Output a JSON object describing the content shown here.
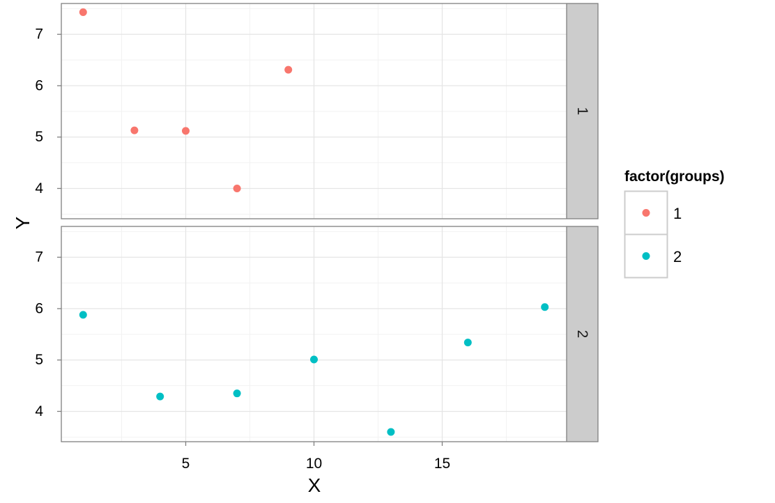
{
  "chart_data": {
    "type": "scatter",
    "facet_variable": "groups",
    "xlabel": "X",
    "ylabel": "Y",
    "xlim": [
      0.15,
      19.85
    ],
    "ylim": [
      3.41,
      7.6
    ],
    "x_ticks": [
      5,
      10,
      15
    ],
    "y_ticks": [
      4,
      5,
      6,
      7
    ],
    "grid": true,
    "legend": {
      "title": "factor(groups)",
      "position": "right",
      "entries": [
        {
          "label": "1",
          "color": "#F8766D"
        },
        {
          "label": "2",
          "color": "#00BFC4"
        }
      ]
    },
    "panels": [
      {
        "strip_label": "1",
        "color": "#F8766D",
        "points": [
          {
            "x": 1,
            "y": 7.43
          },
          {
            "x": 3,
            "y": 5.13
          },
          {
            "x": 5,
            "y": 5.12
          },
          {
            "x": 7,
            "y": 4.0
          },
          {
            "x": 9,
            "y": 6.31
          }
        ]
      },
      {
        "strip_label": "2",
        "color": "#00BFC4",
        "points": [
          {
            "x": 1,
            "y": 5.88
          },
          {
            "x": 4,
            "y": 4.29
          },
          {
            "x": 7,
            "y": 4.35
          },
          {
            "x": 10,
            "y": 5.01
          },
          {
            "x": 13,
            "y": 3.6
          },
          {
            "x": 16,
            "y": 5.34
          },
          {
            "x": 19,
            "y": 6.03
          }
        ]
      }
    ]
  }
}
